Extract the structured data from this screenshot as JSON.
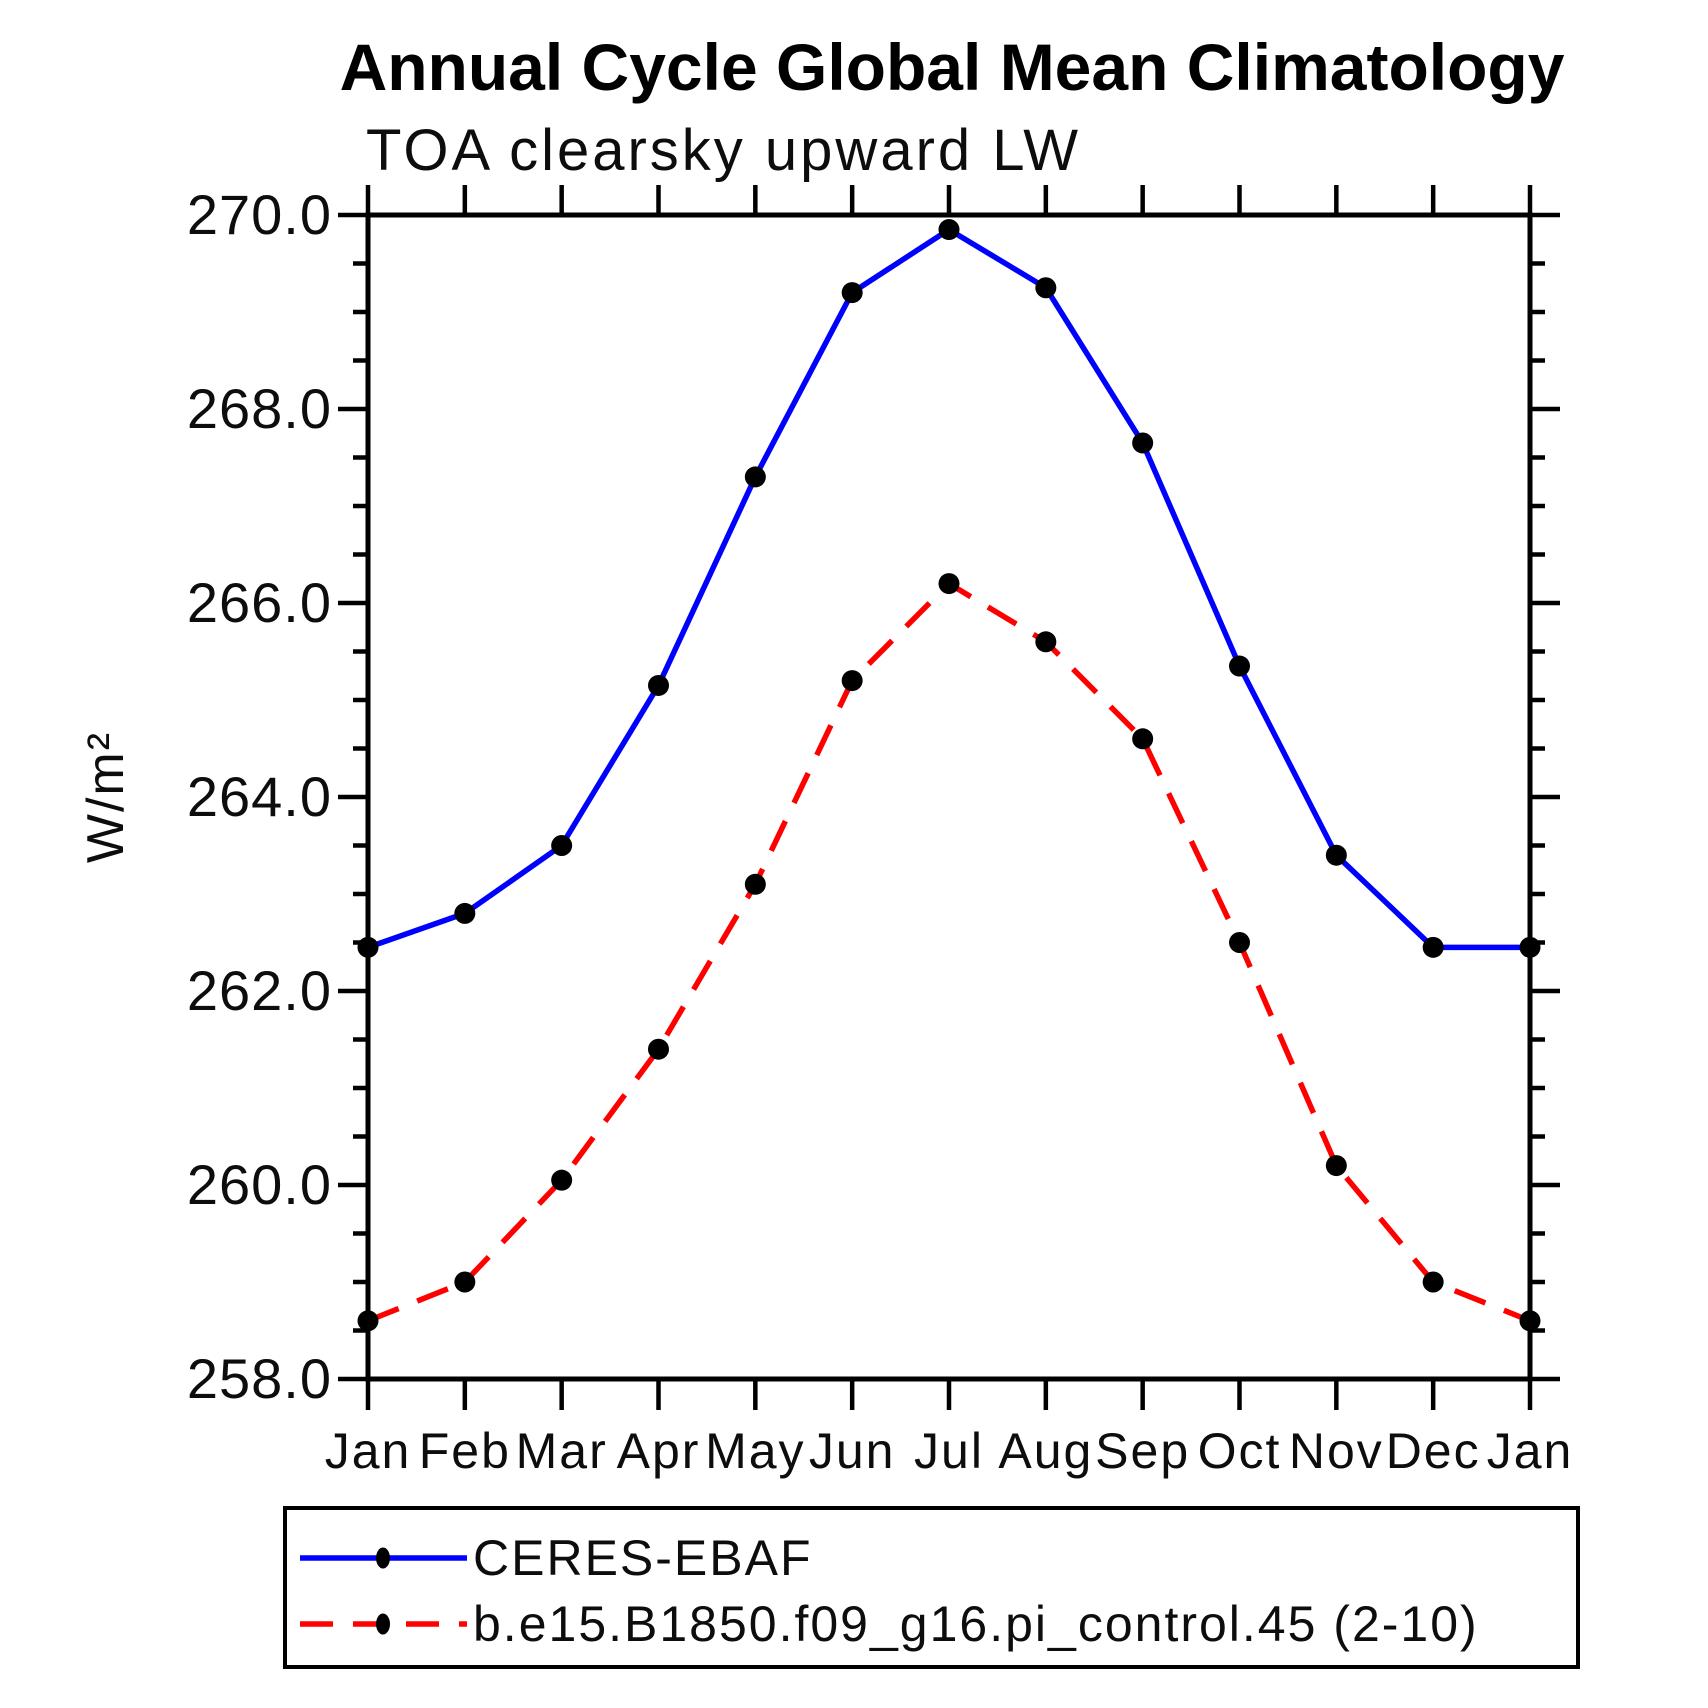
{
  "header": {
    "title": "Annual Cycle Global Mean Climatology",
    "subtitle": "TOA clearsky upward LW"
  },
  "axes": {
    "y_label": "W/m²",
    "y_tick_labels": [
      "270.0",
      "268.0",
      "266.0",
      "264.0",
      "262.0",
      "260.0",
      "258.0"
    ],
    "x_tick_labels": [
      "Jan",
      "Feb",
      "Mar",
      "Apr",
      "May",
      "Jun",
      "Jul",
      "Aug",
      "Sep",
      "Oct",
      "Nov",
      "Dec",
      "Jan"
    ]
  },
  "chart_data": {
    "type": "line",
    "title": "Annual Cycle Global Mean Climatology",
    "subtitle": "TOA clearsky upward LW",
    "xlabel": "",
    "ylabel": "W/m²",
    "ylim": [
      258.0,
      270.0
    ],
    "y_major_step": 2.0,
    "y_minor_step": 0.5,
    "grid": false,
    "legend_position": "bottom",
    "frame_color": "#000000",
    "marker_color": "#000000",
    "categories": [
      "Jan",
      "Feb",
      "Mar",
      "Apr",
      "May",
      "Jun",
      "Jul",
      "Aug",
      "Sep",
      "Oct",
      "Nov",
      "Dec",
      "Jan"
    ],
    "series": [
      {
        "name": "CERES-EBAF",
        "color": "#0000ff",
        "line_style": "solid",
        "marker": "filled-circle",
        "values": [
          262.45,
          262.8,
          263.5,
          265.15,
          267.3,
          269.2,
          269.85,
          269.25,
          267.65,
          265.35,
          263.4,
          262.45,
          262.45
        ]
      },
      {
        "name": "b.e15.B1850.f09_g16.pi_control.45 (2-10)",
        "color": "#ff0000",
        "line_style": "dashed",
        "marker": "filled-circle",
        "values": [
          258.6,
          259.0,
          260.05,
          261.4,
          263.1,
          265.2,
          266.2,
          265.6,
          264.6,
          262.5,
          260.2,
          259.0,
          258.6
        ]
      }
    ]
  }
}
